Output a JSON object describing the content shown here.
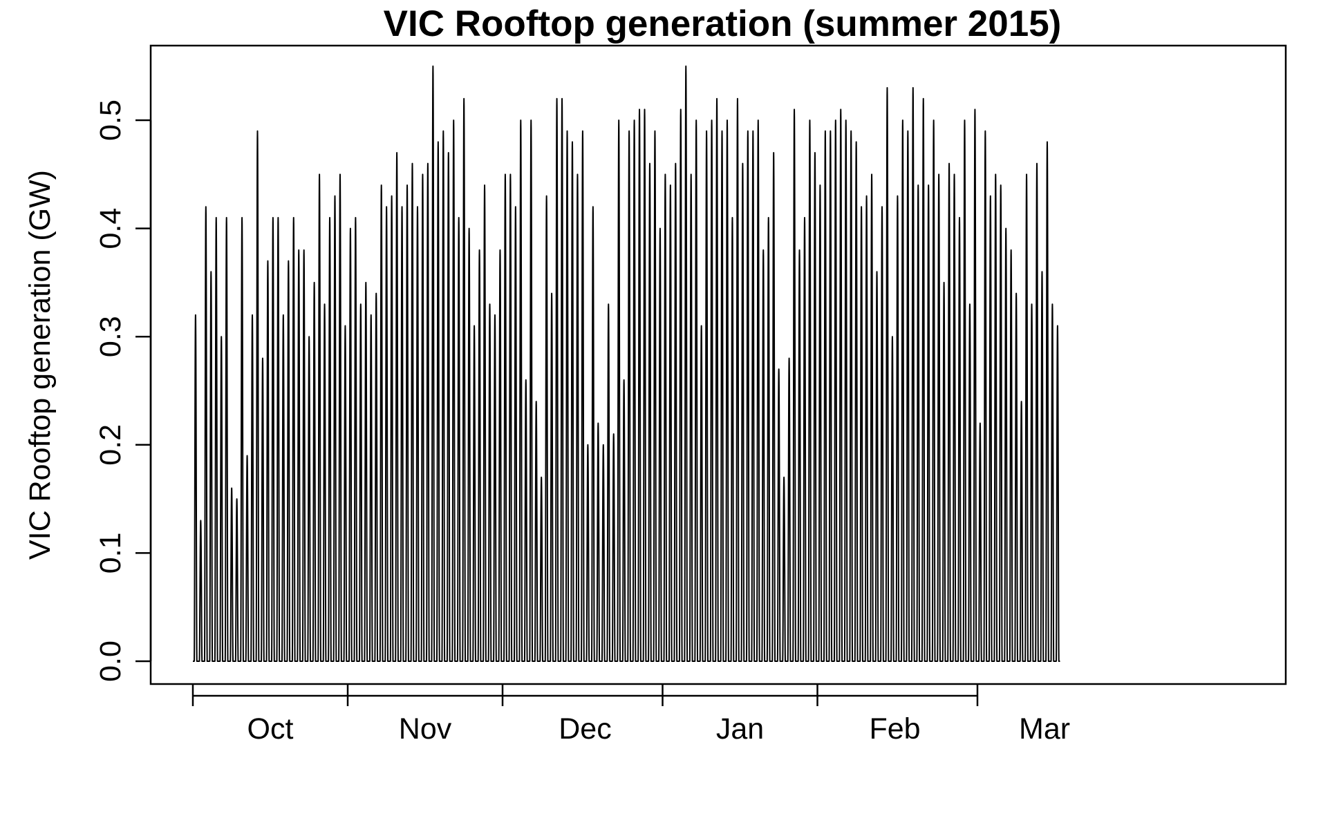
{
  "chart_data": {
    "type": "line",
    "title": "VIC Rooftop generation (summer 2015)",
    "xlabel": "",
    "ylabel": "VIC Rooftop generation (GW)",
    "x_range": [
      "2015-09-16",
      "2016-03-31"
    ],
    "ylim": [
      0.0,
      0.55
    ],
    "y_ticks": [
      "0.0",
      "0.1",
      "0.2",
      "0.3",
      "0.4",
      "0.5"
    ],
    "x_tick_labels": [
      "Oct",
      "Nov",
      "Dec",
      "Jan",
      "Feb",
      "Mar"
    ],
    "x_tick_dates": [
      "2015-09-16",
      "2015-10-16",
      "2015-11-15",
      "2015-12-16",
      "2016-01-15",
      "2016-02-15",
      "2016-03-31"
    ],
    "x_label_dates": [
      "2015-10-01",
      "2015-10-31",
      "2015-12-01",
      "2015-12-31",
      "2016-01-30",
      "2016-02-28"
    ],
    "grid": false,
    "color": "#000000",
    "start_date": "2015-09-16",
    "daily_peak_gw": [
      0.32,
      0.13,
      0.42,
      0.36,
      0.41,
      0.3,
      0.41,
      0.16,
      0.15,
      0.41,
      0.19,
      0.32,
      0.49,
      0.28,
      0.37,
      0.41,
      0.41,
      0.32,
      0.37,
      0.41,
      0.38,
      0.38,
      0.3,
      0.35,
      0.45,
      0.33,
      0.41,
      0.43,
      0.45,
      0.31,
      0.4,
      0.41,
      0.33,
      0.35,
      0.32,
      0.34,
      0.44,
      0.42,
      0.43,
      0.47,
      0.42,
      0.44,
      0.46,
      0.42,
      0.45,
      0.46,
      0.55,
      0.48,
      0.49,
      0.47,
      0.5,
      0.41,
      0.52,
      0.4,
      0.31,
      0.38,
      0.44,
      0.33,
      0.32,
      0.38,
      0.45,
      0.45,
      0.42,
      0.5,
      0.26,
      0.5,
      0.24,
      0.17,
      0.43,
      0.34,
      0.52,
      0.52,
      0.49,
      0.48,
      0.45,
      0.49,
      0.2,
      0.42,
      0.22,
      0.2,
      0.33,
      0.21,
      0.5,
      0.26,
      0.49,
      0.5,
      0.51,
      0.51,
      0.46,
      0.49,
      0.4,
      0.45,
      0.44,
      0.46,
      0.51,
      0.55,
      0.45,
      0.5,
      0.31,
      0.49,
      0.5,
      0.52,
      0.49,
      0.5,
      0.41,
      0.52,
      0.46,
      0.49,
      0.49,
      0.5,
      0.38,
      0.41,
      0.47,
      0.27,
      0.17,
      0.28,
      0.51,
      0.38,
      0.41,
      0.5,
      0.47,
      0.44,
      0.49,
      0.49,
      0.5,
      0.51,
      0.5,
      0.49,
      0.48,
      0.42,
      0.43,
      0.45,
      0.36,
      0.42,
      0.53,
      0.3,
      0.43,
      0.5,
      0.49,
      0.53,
      0.44,
      0.52,
      0.44,
      0.5,
      0.45,
      0.35,
      0.46,
      0.45,
      0.41,
      0.5,
      0.33,
      0.51,
      0.22,
      0.49,
      0.43,
      0.45,
      0.44,
      0.4,
      0.38,
      0.34,
      0.24,
      0.45,
      0.33,
      0.46,
      0.36,
      0.48,
      0.33,
      0.31
    ]
  }
}
